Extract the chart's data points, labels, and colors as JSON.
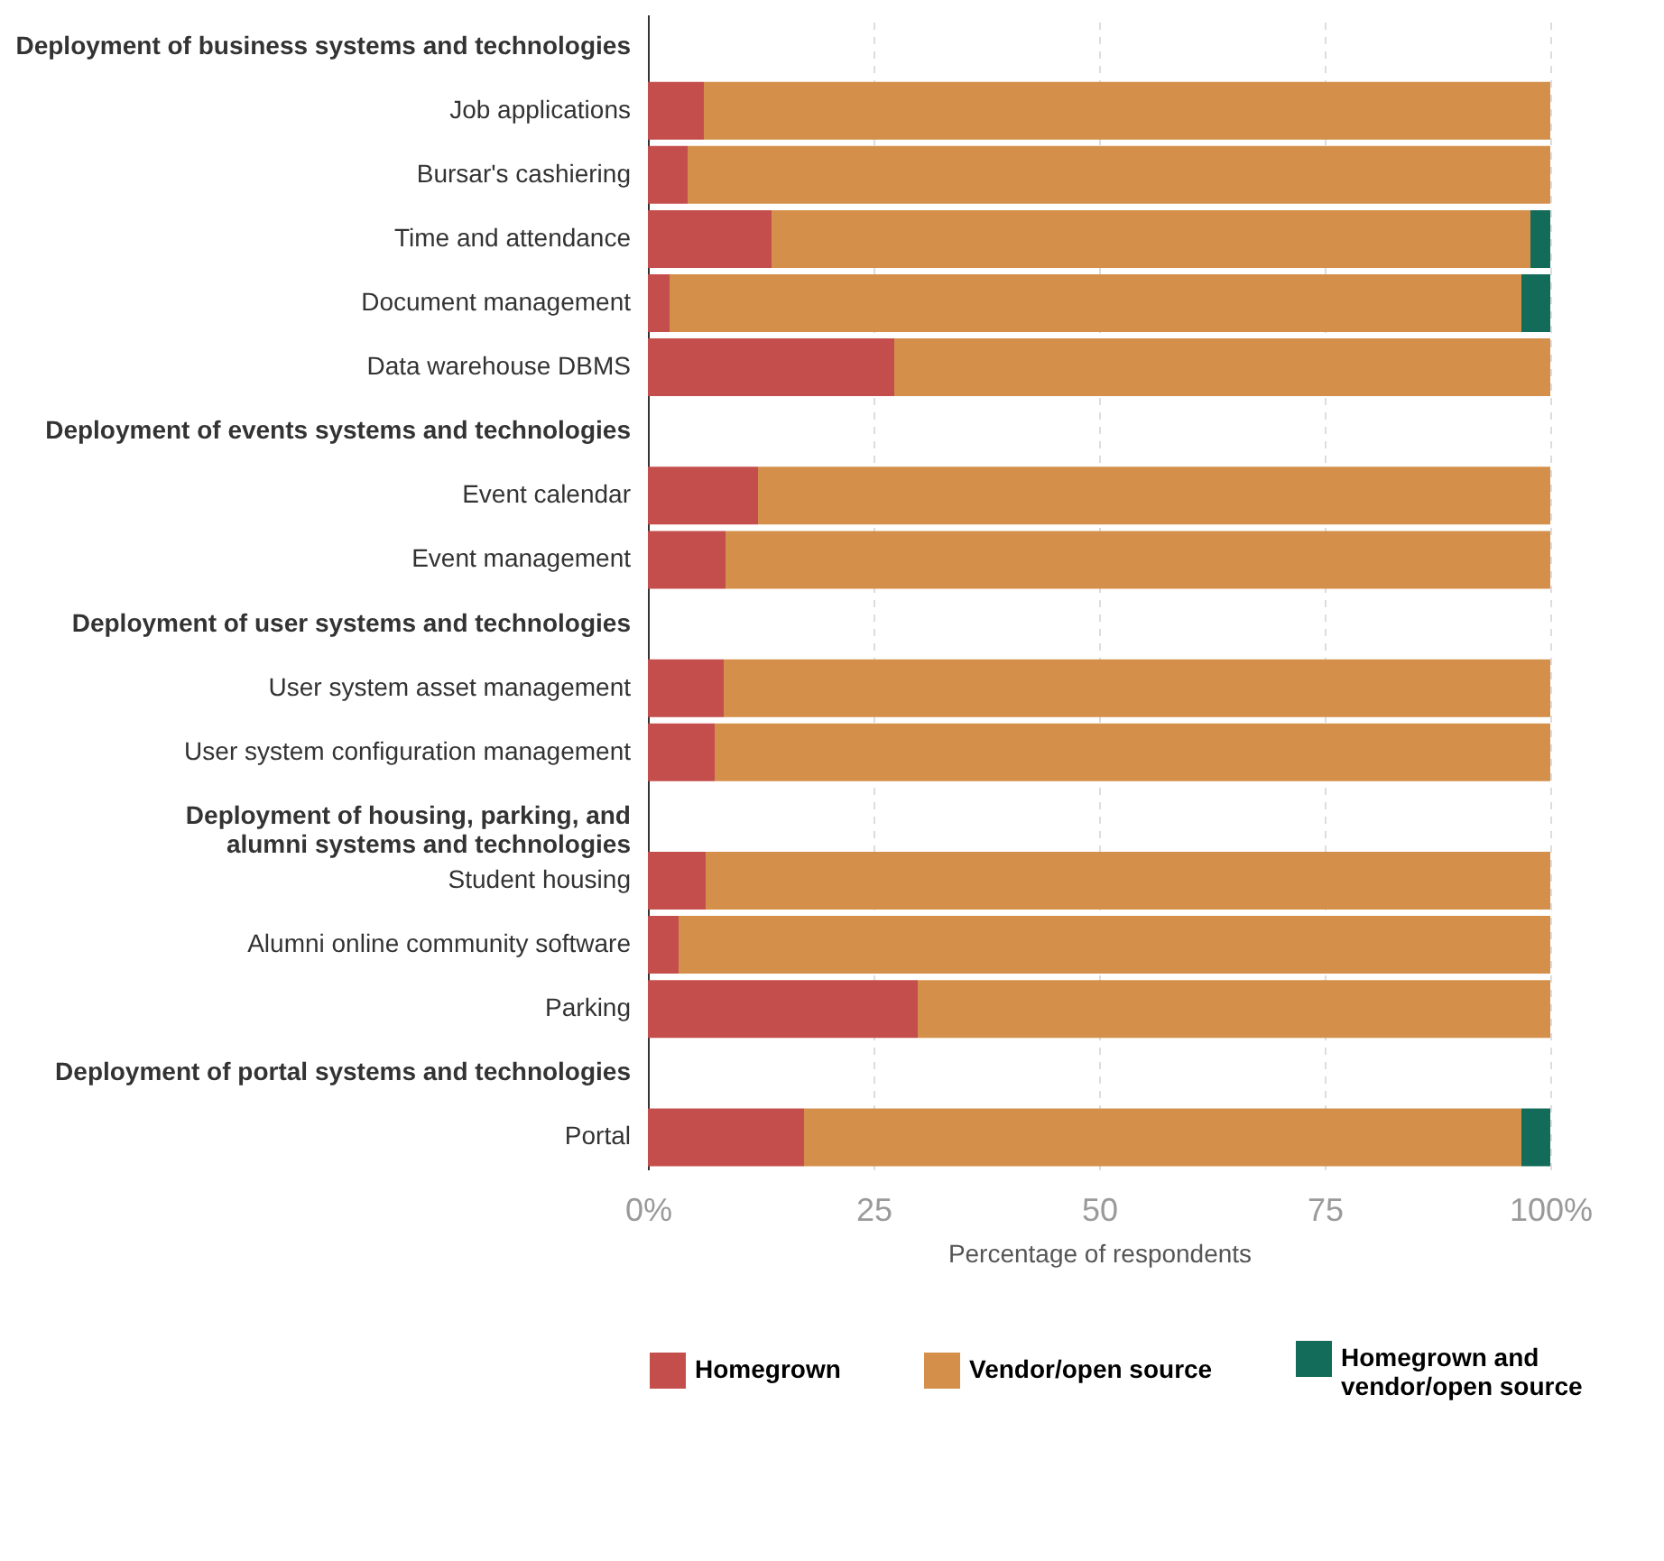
{
  "chart_data": {
    "type": "bar",
    "orientation": "horizontal",
    "stacked": true,
    "xlabel": "Percentage of respondents",
    "categories": [
      "Deployment of business systems and technologies",
      "Job applications",
      "Bursar's cashiering",
      "Time and attendance",
      "Document management",
      "Data warehouse DBMS",
      "Deployment of events systems and technologies",
      "Event calendar",
      "Event management",
      "Deployment of user systems and technologies",
      "User system asset management",
      "User system configuration management",
      "Deployment of housing, parking, and alumni systems and technologies",
      "Student housing",
      "Alumni online community software",
      "Parking",
      "Deployment of portal systems and technologies",
      "Portal"
    ],
    "series": [
      {
        "name": "Homegrown",
        "color": "#c44e4b",
        "values": [
          null,
          6.2,
          4.4,
          13.7,
          2.4,
          27.3,
          null,
          12.2,
          8.6,
          null,
          8.4,
          7.4,
          null,
          6.4,
          3.4,
          29.9,
          null,
          17.3
        ]
      },
      {
        "name": "Vendor/open source",
        "color": "#d4904a",
        "values": [
          null,
          93.8,
          95.6,
          84.1,
          94.4,
          72.7,
          null,
          87.8,
          91.4,
          null,
          91.6,
          92.6,
          null,
          93.6,
          96.6,
          70.1,
          null,
          79.5
        ]
      },
      {
        "name": "Homegrown and vendor/open source",
        "color": "#136b5a",
        "values": [
          null,
          null,
          null,
          2.2,
          3.2,
          null,
          null,
          null,
          null,
          null,
          null,
          null,
          null,
          null,
          null,
          null,
          null,
          3.2
        ]
      }
    ],
    "xlim": [
      0,
      100
    ],
    "xticks": [
      {
        "value": 0,
        "label": "0%"
      },
      25,
      50,
      75,
      {
        "value": 100,
        "label": "100%"
      }
    ],
    "grid": "x",
    "legend": "bottom"
  }
}
